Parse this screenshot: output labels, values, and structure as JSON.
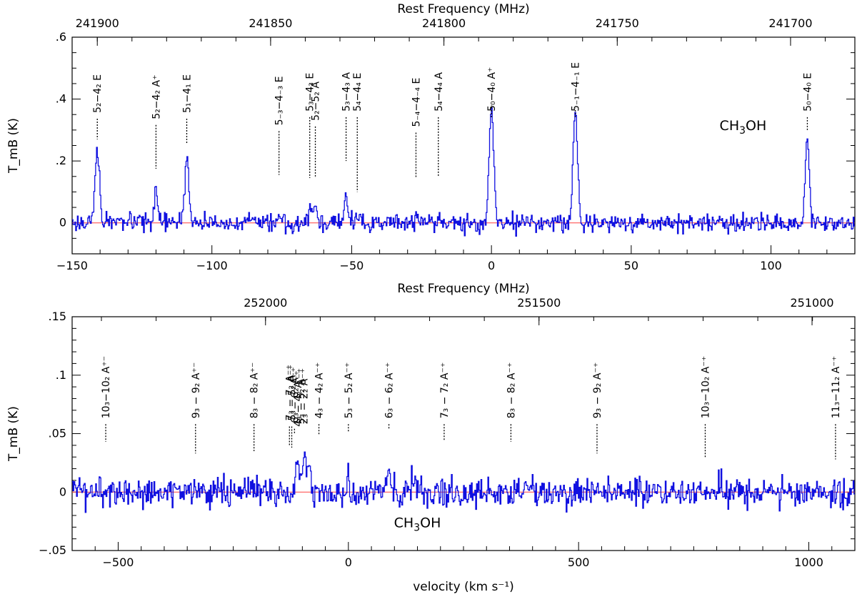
{
  "chart_data": [
    {
      "type": "line",
      "title": "",
      "xlabel": "",
      "ylabel": "T_mB (K)",
      "top_axis_label": "Rest Frequency (MHz)",
      "xlim": [
        -150,
        130
      ],
      "ylim": [
        -0.1,
        0.6
      ],
      "x_ticks": [
        -150,
        -100,
        -50,
        0,
        50,
        100
      ],
      "y_ticks": [
        0,
        0.2,
        0.4,
        0.6
      ],
      "top_ticks": [
        {
          "label": "241900",
          "x": -141
        },
        {
          "label": "241850",
          "x": -79
        },
        {
          "label": "241800",
          "x": -17
        },
        {
          "label": "241750",
          "x": 45
        },
        {
          "label": "241700",
          "x": 107
        }
      ],
      "molecule": "CH3OH",
      "peaks": [
        {
          "x": -141,
          "height": 0.24,
          "width": 0.8
        },
        {
          "x": -120,
          "height": 0.1,
          "width": 0.6
        },
        {
          "x": -109,
          "height": 0.22,
          "width": 0.7
        },
        {
          "x": -76,
          "height": 0.02,
          "width": 0.6
        },
        {
          "x": -65,
          "height": 0.04,
          "width": 0.6
        },
        {
          "x": -63,
          "height": 0.06,
          "width": 0.6
        },
        {
          "x": -52,
          "height": 0.08,
          "width": 0.6
        },
        {
          "x": -48,
          "height": 0.02,
          "width": 0.6
        },
        {
          "x": -27,
          "height": 0.02,
          "width": 0.6
        },
        {
          "x": -19,
          "height": 0.02,
          "width": 0.6
        },
        {
          "x": 0,
          "height": 0.37,
          "width": 0.8
        },
        {
          "x": 30,
          "height": 0.36,
          "width": 0.8
        },
        {
          "x": 113,
          "height": 0.28,
          "width": 0.7
        }
      ],
      "line_labels": [
        {
          "x": -141,
          "label": "5₂−4₂ E",
          "y_top": 0.355,
          "y_bottom": 0.27
        },
        {
          "x": -120,
          "label": "5₂−4₂ A⁺",
          "y_top": 0.335,
          "y_bottom": 0.175
        },
        {
          "x": -109,
          "label": "5₁−4₁ E",
          "y_top": 0.355,
          "y_bottom": 0.255
        },
        {
          "x": -76,
          "label": "5₋₃−4₋₃ E",
          "y_top": 0.315,
          "y_bottom": 0.155
        },
        {
          "x": -65,
          "label": "5₃−4₃ E",
          "y_top": 0.36,
          "y_bottom": 0.145
        },
        {
          "x": -63,
          "label": "5₂−5₂ A",
          "y_top": 0.33,
          "y_bottom": 0.145
        },
        {
          "x": -52,
          "label": "5₃−4₃ A",
          "y_top": 0.36,
          "y_bottom": 0.2
        },
        {
          "x": -48,
          "label": "5₄−4₄ E",
          "y_top": 0.36,
          "y_bottom": 0.1
        },
        {
          "x": -27,
          "label": "5₋₄−4₋₄ E",
          "y_top": 0.31,
          "y_bottom": 0.145
        },
        {
          "x": -19,
          "label": "5₄−4₄ A",
          "y_top": 0.36,
          "y_bottom": 0.15
        },
        {
          "x": 0,
          "label": "5₀−4₀ A⁺",
          "y_top": 0.36,
          "y_bottom": 0.38
        },
        {
          "x": 30,
          "label": "5₋₁−4₋₁ E",
          "y_top": 0.36,
          "y_bottom": 0.37
        },
        {
          "x": 113,
          "label": "5₀−4₀ E",
          "y_top": 0.36,
          "y_bottom": 0.3
        }
      ],
      "noise_rms": 0.014,
      "seed": 17
    },
    {
      "type": "line",
      "title": "",
      "xlabel": "velocity (km s⁻¹)",
      "ylabel": "T_mB (K)",
      "top_axis_label": "Rest Frequency (MHz)",
      "xlim": [
        -600,
        1100
      ],
      "ylim": [
        -0.05,
        0.15
      ],
      "x_ticks": [
        -500,
        0,
        500,
        1000
      ],
      "y_ticks": [
        -0.05,
        0,
        0.05,
        0.1,
        0.15
      ],
      "top_ticks": [
        {
          "label": "252000",
          "x": -180
        },
        {
          "label": "251500",
          "x": 414
        },
        {
          "label": "251000",
          "x": 1007
        }
      ],
      "molecule": "CH3OH",
      "peaks": [
        {
          "x": -110,
          "height": 0.032,
          "width": 4
        },
        {
          "x": -95,
          "height": 0.025,
          "width": 4
        },
        {
          "x": -85,
          "height": 0.022,
          "width": 3
        },
        {
          "x": 0,
          "height": 0.026,
          "width": 2
        },
        {
          "x": 88,
          "height": 0.02,
          "width": 3
        }
      ],
      "line_labels": [
        {
          "x": -527,
          "label": "10₃−10₂ A⁺⁻",
          "y_top": 0.063,
          "y_bottom": 0.043
        },
        {
          "x": -332,
          "label": "9₃ − 9₂ A⁺⁻",
          "y_top": 0.063,
          "y_bottom": 0.033
        },
        {
          "x": -205,
          "label": "8₃ − 8₂ A⁺⁻",
          "y_top": 0.063,
          "y_bottom": 0.035
        },
        {
          "x": -128,
          "label": "7₃ − 7₂ A⁻⁺",
          "y_top": 0.061,
          "y_bottom": 0.04
        },
        {
          "x": -123,
          "label": "5₃ − 5₂ A⁻⁺",
          "y_top": 0.061,
          "y_bottom": 0.038
        },
        {
          "x": -117,
          "label": "6₃ − 6₂ A⁻⁺",
          "y_top": 0.059,
          "y_bottom": 0.05
        },
        {
          "x": -110,
          "label": "4₃ − 4₂ A⁻⁺",
          "y_top": 0.056,
          "y_bottom": 0.052
        },
        {
          "x": -104,
          "label": "3₃ − 3₂ A⁻⁺",
          "y_top": 0.058,
          "y_bottom": 0.052
        },
        {
          "x": -97,
          "label": "2₃ − 2₂ A⁻⁺",
          "y_top": 0.058,
          "y_bottom": 0.052
        },
        {
          "x": -64,
          "label": "4₃ − 4₂ A⁻⁺",
          "y_top": 0.063,
          "y_bottom": 0.049
        },
        {
          "x": 0,
          "label": "5₃ − 5₂ A⁻⁺",
          "y_top": 0.063,
          "y_bottom": 0.052
        },
        {
          "x": 88,
          "label": "6₃ − 6₂ A⁻⁺",
          "y_top": 0.063,
          "y_bottom": 0.054
        },
        {
          "x": 208,
          "label": "7₃ − 7₂ A⁻⁺",
          "y_top": 0.063,
          "y_bottom": 0.044
        },
        {
          "x": 353,
          "label": "8₃ − 8₂ A⁻⁺",
          "y_top": 0.063,
          "y_bottom": 0.043
        },
        {
          "x": 540,
          "label": "9₃ − 9₂ A⁻⁺",
          "y_top": 0.063,
          "y_bottom": 0.033
        },
        {
          "x": 775,
          "label": "10₃−10₂ A⁻⁺",
          "y_top": 0.063,
          "y_bottom": 0.029
        },
        {
          "x": 1058,
          "label": "11₃−11₂ A⁻⁺",
          "y_top": 0.063,
          "y_bottom": 0.028
        }
      ],
      "noise_rms": 0.0065,
      "seed": 42
    }
  ]
}
